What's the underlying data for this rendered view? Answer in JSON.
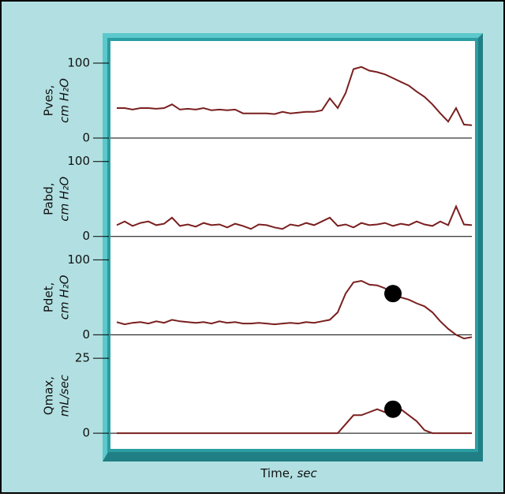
{
  "chart_data": [
    {
      "type": "line",
      "ylabel": [
        "Pves,",
        "cm H₂O"
      ],
      "color": "#7a1f1f",
      "ylim": [
        0,
        100
      ],
      "yticks": [
        0,
        100
      ],
      "values": [
        40,
        40,
        38,
        40,
        40,
        39,
        40,
        45,
        38,
        39,
        38,
        40,
        37,
        38,
        37,
        38,
        33,
        33,
        33,
        33,
        32,
        35,
        33,
        34,
        35,
        35,
        37,
        53,
        40,
        60,
        92,
        95,
        90,
        88,
        85,
        80,
        75,
        70,
        62,
        55,
        45,
        33,
        22,
        40,
        18,
        17
      ]
    },
    {
      "type": "line",
      "ylabel": [
        "Pabd,",
        "cm H₂O"
      ],
      "color": "#7a1f1f",
      "ylim": [
        0,
        100
      ],
      "yticks": [
        0,
        100
      ],
      "values": [
        15,
        20,
        14,
        18,
        20,
        15,
        17,
        25,
        14,
        16,
        13,
        18,
        15,
        16,
        12,
        17,
        14,
        10,
        16,
        15,
        12,
        10,
        16,
        14,
        18,
        15,
        20,
        25,
        14,
        16,
        12,
        18,
        15,
        16,
        18,
        14,
        17,
        15,
        20,
        16,
        14,
        20,
        15,
        40,
        16,
        15
      ]
    },
    {
      "type": "line",
      "ylabel": [
        "Pdet,",
        "cm H₂O"
      ],
      "color": "#7a1f1f",
      "ylim": [
        0,
        100
      ],
      "yticks": [
        0,
        100
      ],
      "highlight_index": 35,
      "values": [
        17,
        14,
        16,
        17,
        15,
        18,
        16,
        20,
        18,
        17,
        16,
        17,
        15,
        18,
        16,
        17,
        15,
        15,
        16,
        15,
        14,
        15,
        16,
        15,
        17,
        16,
        18,
        20,
        30,
        55,
        70,
        72,
        67,
        66,
        62,
        55,
        50,
        47,
        42,
        38,
        30,
        18,
        8,
        0,
        -5,
        -3
      ]
    },
    {
      "type": "line",
      "ylabel": [
        "Qmax,",
        "mL/sec"
      ],
      "color": "#7a1f1f",
      "ylim": [
        0,
        25
      ],
      "yticks": [
        0,
        25
      ],
      "highlight_index": 35,
      "xlabel": "Time,",
      "xunit": "sec",
      "values": [
        0,
        0,
        0,
        0,
        0,
        0,
        0,
        0,
        0,
        0,
        0,
        0,
        0,
        0,
        0,
        0,
        0,
        0,
        0,
        0,
        0,
        0,
        0,
        0,
        0,
        0,
        0,
        0,
        0,
        3,
        6,
        6,
        7,
        8,
        7,
        8,
        8,
        6,
        4,
        1,
        0,
        0,
        0,
        0,
        0,
        0
      ]
    }
  ]
}
